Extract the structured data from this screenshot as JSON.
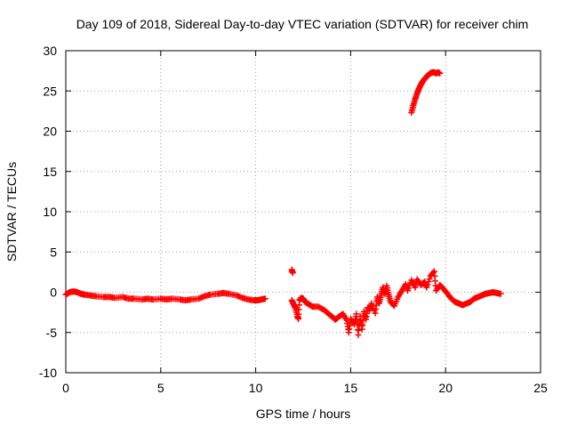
{
  "chart_data": {
    "type": "scatter",
    "title": "Day 109 of 2018, Sidereal Day-to-day VTEC variation (SDTVAR) for receiver chim",
    "xlabel": "GPS time / hours",
    "ylabel": "SDTVAR / TECUs",
    "xlim": [
      0,
      25
    ],
    "ylim": [
      -10,
      30
    ],
    "xticks": [
      0,
      5,
      10,
      15,
      20,
      25
    ],
    "yticks": [
      -10,
      -5,
      0,
      5,
      10,
      15,
      20,
      25,
      30
    ],
    "grid": true,
    "marker": "+",
    "color": "#ff0000",
    "series": [
      {
        "name": "SDTVAR",
        "points": [
          [
            0.0,
            -0.3
          ],
          [
            0.2,
            0.0
          ],
          [
            0.4,
            0.1
          ],
          [
            0.6,
            0.0
          ],
          [
            0.8,
            -0.2
          ],
          [
            1.0,
            -0.3
          ],
          [
            1.3,
            -0.4
          ],
          [
            1.6,
            -0.5
          ],
          [
            2.0,
            -0.6
          ],
          [
            2.3,
            -0.6
          ],
          [
            2.6,
            -0.7
          ],
          [
            3.0,
            -0.6
          ],
          [
            3.3,
            -0.8
          ],
          [
            3.6,
            -0.8
          ],
          [
            4.0,
            -0.9
          ],
          [
            4.3,
            -0.8
          ],
          [
            4.6,
            -0.9
          ],
          [
            5.0,
            -0.8
          ],
          [
            5.3,
            -0.9
          ],
          [
            5.6,
            -0.8
          ],
          [
            6.0,
            -0.9
          ],
          [
            6.3,
            -1.0
          ],
          [
            6.6,
            -0.9
          ],
          [
            7.0,
            -0.8
          ],
          [
            7.3,
            -0.5
          ],
          [
            7.6,
            -0.3
          ],
          [
            8.0,
            -0.2
          ],
          [
            8.3,
            -0.1
          ],
          [
            8.6,
            -0.2
          ],
          [
            9.0,
            -0.4
          ],
          [
            9.3,
            -0.7
          ],
          [
            9.6,
            -0.9
          ],
          [
            9.9,
            -1.0
          ],
          [
            10.1,
            -1.0
          ],
          [
            10.3,
            -0.9
          ],
          [
            10.5,
            -0.8
          ],
          [
            11.9,
            2.8
          ],
          [
            11.95,
            2.4
          ],
          [
            11.9,
            -1.0
          ],
          [
            12.0,
            -1.5
          ],
          [
            12.1,
            -2.0
          ],
          [
            12.2,
            -3.0
          ],
          [
            12.25,
            -3.3
          ],
          [
            12.3,
            -1.0
          ],
          [
            12.4,
            -0.7
          ],
          [
            12.5,
            -0.8
          ],
          [
            12.6,
            -1.2
          ],
          [
            12.8,
            -1.5
          ],
          [
            13.0,
            -1.8
          ],
          [
            13.3,
            -1.8
          ],
          [
            13.6,
            -2.2
          ],
          [
            13.8,
            -2.6
          ],
          [
            14.0,
            -3.0
          ],
          [
            14.2,
            -3.4
          ],
          [
            14.4,
            -3.0
          ],
          [
            14.6,
            -2.7
          ],
          [
            14.8,
            -3.5
          ],
          [
            14.9,
            -5.0
          ],
          [
            15.0,
            -3.3
          ],
          [
            15.2,
            -4.0
          ],
          [
            15.3,
            -2.7
          ],
          [
            15.4,
            -5.3
          ],
          [
            15.5,
            -3.0
          ],
          [
            15.6,
            -4.6
          ],
          [
            15.7,
            -2.4
          ],
          [
            15.8,
            -3.4
          ],
          [
            15.9,
            -1.9
          ],
          [
            16.0,
            -2.2
          ],
          [
            16.1,
            -1.4
          ],
          [
            16.3,
            -2.6
          ],
          [
            16.4,
            -0.6
          ],
          [
            16.5,
            -1.4
          ],
          [
            16.6,
            -0.4
          ],
          [
            16.7,
            0.6
          ],
          [
            16.8,
            -0.2
          ],
          [
            16.9,
            0.8
          ],
          [
            17.0,
            -0.3
          ],
          [
            17.1,
            -1.2
          ],
          [
            17.3,
            -1.7
          ],
          [
            17.5,
            -0.6
          ],
          [
            17.7,
            0.2
          ],
          [
            17.9,
            1.0
          ],
          [
            18.0,
            0.2
          ],
          [
            18.2,
            1.5
          ],
          [
            18.4,
            0.6
          ],
          [
            18.5,
            1.6
          ],
          [
            18.7,
            0.9
          ],
          [
            18.9,
            1.3
          ],
          [
            19.0,
            0.6
          ],
          [
            19.2,
            2.0
          ],
          [
            19.4,
            2.6
          ],
          [
            19.5,
            0.2
          ],
          [
            19.7,
            0.9
          ],
          [
            19.9,
            0.4
          ],
          [
            20.1,
            -0.2
          ],
          [
            20.3,
            -0.8
          ],
          [
            20.5,
            -1.2
          ],
          [
            20.7,
            -1.4
          ],
          [
            20.9,
            -1.6
          ],
          [
            21.1,
            -1.4
          ],
          [
            21.3,
            -1.2
          ],
          [
            21.5,
            -0.8
          ],
          [
            21.7,
            -0.6
          ],
          [
            21.9,
            -0.4
          ],
          [
            22.1,
            -0.2
          ],
          [
            22.3,
            -0.1
          ],
          [
            22.5,
            0.0
          ],
          [
            22.7,
            -0.1
          ],
          [
            22.9,
            -0.2
          ],
          [
            18.2,
            22.3
          ],
          [
            18.3,
            23.2
          ],
          [
            18.4,
            24.0
          ],
          [
            18.5,
            24.7
          ],
          [
            18.6,
            25.3
          ],
          [
            18.7,
            25.8
          ],
          [
            18.8,
            26.2
          ],
          [
            18.9,
            26.5
          ],
          [
            19.0,
            26.8
          ],
          [
            19.1,
            27.0
          ],
          [
            19.2,
            27.2
          ],
          [
            19.3,
            27.3
          ],
          [
            19.4,
            27.3
          ],
          [
            19.5,
            27.2
          ],
          [
            19.6,
            27.3
          ],
          [
            19.7,
            27.2
          ]
        ]
      }
    ]
  }
}
